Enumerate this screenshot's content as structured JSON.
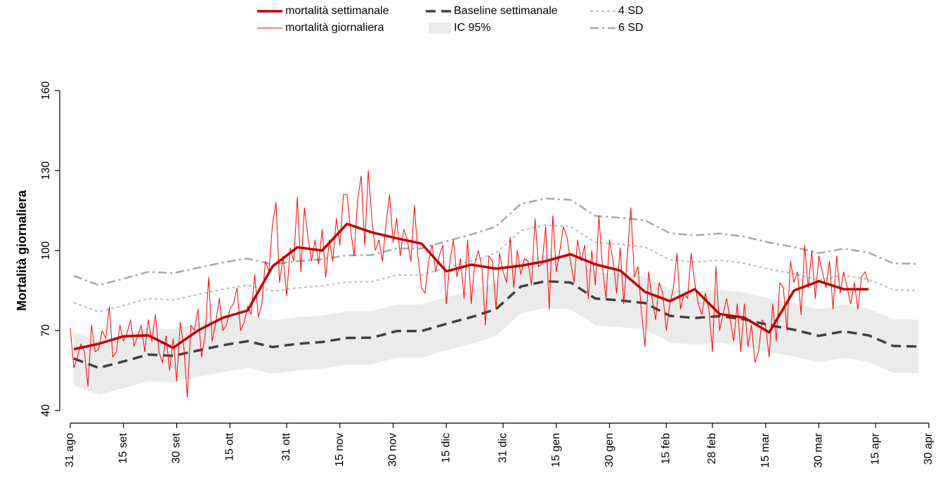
{
  "chart_data": {
    "type": "line",
    "ylabel": "Mortalità giornaliera",
    "xlim": [
      0,
      242
    ],
    "ylim": [
      40,
      160
    ],
    "yticks": [
      40,
      70,
      100,
      130,
      160
    ],
    "xticks": [
      {
        "value": 0,
        "label": "31 ago"
      },
      {
        "value": 15,
        "label": "15 set"
      },
      {
        "value": 30,
        "label": "30 set"
      },
      {
        "value": 45,
        "label": "15 ott"
      },
      {
        "value": 61,
        "label": "31 ott"
      },
      {
        "value": 76,
        "label": "15 nov"
      },
      {
        "value": 91,
        "label": "30 nov"
      },
      {
        "value": 106,
        "label": "15 dic"
      },
      {
        "value": 122,
        "label": "31 dic"
      },
      {
        "value": 137,
        "label": "15 gen"
      },
      {
        "value": 152,
        "label": "30 gen"
      },
      {
        "value": 168,
        "label": "15 feb"
      },
      {
        "value": 181,
        "label": "28 feb"
      },
      {
        "value": 196,
        "label": "15 mar"
      },
      {
        "value": 211,
        "label": "30 mar"
      },
      {
        "value": 227,
        "label": "15 apr"
      },
      {
        "value": 242,
        "label": "30 apr"
      }
    ],
    "series": [
      {
        "name": "mortalità settimanale",
        "color": "#c00000",
        "style": "thick",
        "x": [
          1,
          8,
          15,
          22,
          29,
          36,
          43,
          50,
          57,
          64,
          71,
          78,
          85,
          92,
          99,
          106,
          113,
          120,
          127,
          134,
          141,
          148,
          155,
          162,
          169,
          176,
          183,
          190,
          197,
          204,
          211,
          218,
          225
        ],
        "values": [
          63,
          65,
          67.8,
          68.2,
          63.5,
          70,
          74.8,
          77.5,
          94,
          101.2,
          100,
          110,
          106.8,
          104.6,
          102.6,
          92.2,
          94.7,
          93.2,
          94.3,
          96,
          98.6,
          94.8,
          92.5,
          84.5,
          81,
          85.5,
          76.2,
          74.8,
          69.3,
          85,
          88.5,
          85.5,
          85.5
        ]
      },
      {
        "name": "mortalità giornaliera",
        "color": "#ff0000",
        "style": "thin",
        "x": [
          0,
          1,
          2,
          3,
          4,
          5,
          6,
          7,
          8,
          9,
          10,
          11,
          12,
          13,
          14,
          15,
          16,
          17,
          18,
          19,
          20,
          21,
          22,
          23,
          24,
          25,
          26,
          27,
          28,
          29,
          30,
          31,
          32,
          33,
          34,
          35,
          36,
          37,
          38,
          39,
          40,
          41,
          42,
          43,
          44,
          45,
          46,
          47,
          48,
          49,
          50,
          51,
          52,
          53,
          54,
          55,
          56,
          57,
          58,
          59,
          60,
          61,
          62,
          63,
          64,
          65,
          66,
          67,
          68,
          69,
          70,
          71,
          72,
          73,
          74,
          75,
          76,
          77,
          78,
          79,
          80,
          81,
          82,
          83,
          84,
          85,
          86,
          87,
          88,
          89,
          90,
          91,
          92,
          93,
          94,
          95,
          96,
          97,
          98,
          99,
          100,
          101,
          102,
          103,
          104,
          105,
          106,
          107,
          108,
          109,
          110,
          111,
          112,
          113,
          114,
          115,
          116,
          117,
          118,
          119,
          120,
          121,
          122,
          123,
          124,
          125,
          126,
          127,
          128,
          129,
          130,
          131,
          132,
          133,
          134,
          135,
          136,
          137,
          138,
          139,
          140,
          141,
          142,
          143,
          144,
          145,
          146,
          147,
          148,
          149,
          150,
          151,
          152,
          153,
          154,
          155,
          156,
          157,
          158,
          159,
          160,
          161,
          162,
          163,
          164,
          165,
          166,
          167,
          168,
          169,
          170,
          171,
          172,
          173,
          174,
          175,
          176,
          177,
          178,
          179,
          180,
          181,
          182,
          183,
          184,
          185,
          186,
          187,
          188,
          189,
          190,
          191,
          192,
          193,
          194,
          195,
          196,
          197,
          198,
          199,
          200,
          201,
          202,
          203,
          204,
          205,
          206,
          207,
          208,
          209,
          210,
          211,
          212,
          213,
          214,
          215,
          216,
          217,
          218,
          219,
          220,
          221,
          222,
          223,
          224,
          225
        ],
        "values": [
          71,
          56,
          60,
          65,
          62,
          49,
          72,
          62,
          63,
          70,
          67,
          79,
          60,
          62,
          72,
          66,
          69,
          74,
          64,
          68,
          72,
          62,
          74,
          66,
          76,
          62,
          58,
          68,
          55,
          67,
          51,
          73,
          64,
          45,
          72,
          70,
          78,
          60,
          68,
          90,
          66,
          73,
          82,
          70,
          72,
          78,
          80,
          86,
          70,
          73,
          79,
          76,
          91,
          75,
          80,
          96,
          92,
          110,
          118,
          88,
          98,
          83,
          101,
          96,
          120,
          92,
          116,
          105,
          96,
          104,
          95,
          108,
          90,
          104,
          96,
          112,
          102,
          121,
          121,
          108,
          98,
          119,
          128,
          102,
          130,
          112,
          100,
          104,
          96,
          110,
          121,
          103,
          112,
          98,
          108,
          104,
          96,
          117,
          98,
          86,
          84,
          96,
          102,
          92,
          98,
          102,
          80,
          96,
          104,
          90,
          97,
          82,
          104,
          80,
          95,
          100,
          94,
          72,
          98,
          96,
          78,
          99,
          92,
          88,
          105,
          86,
          100,
          91,
          97,
          96,
          87,
          112,
          94,
          95,
          109,
          78,
          113,
          92,
          100,
          109,
          105,
          96,
          88,
          104,
          96,
          102,
          82,
          100,
          87,
          113,
          94,
          82,
          104,
          96,
          84,
          101,
          80,
          98,
          116,
          90,
          94,
          77,
          64,
          92,
          82,
          74,
          88,
          84,
          70,
          80,
          86,
          99,
          78,
          84,
          82,
          99,
          88,
          80,
          76,
          84,
          78,
          62,
          94,
          70,
          76,
          82,
          74,
          66,
          80,
          62,
          80,
          64,
          72,
          58,
          62,
          74,
          72,
          60,
          80,
          66,
          88,
          86,
          70,
          96,
          88,
          92,
          76,
          102,
          86,
          100,
          82,
          98,
          92,
          86,
          96,
          78,
          98,
          84,
          92,
          86,
          80,
          88,
          78,
          90,
          92,
          88
        ]
      },
      {
        "name": "Baseline settimanale",
        "color": "#404040",
        "style": "dashed",
        "x": [
          1,
          8,
          15,
          22,
          29,
          36,
          43,
          50,
          57,
          64,
          71,
          78,
          85,
          92,
          99,
          106,
          113,
          120,
          127,
          134,
          141,
          148,
          155,
          162,
          169,
          176,
          183,
          190,
          197,
          204,
          211,
          218,
          225,
          232,
          239
        ],
        "values": [
          59.5,
          56,
          58.4,
          61,
          60.5,
          62.5,
          64.5,
          66,
          63.8,
          65,
          65.7,
          67.2,
          67.3,
          69.8,
          69.8,
          72.5,
          75,
          78,
          86.5,
          88.5,
          88,
          82,
          81.3,
          80.3,
          75.5,
          74.7,
          75.4,
          74.2,
          72,
          70.3,
          68,
          69.7,
          68.2,
          64.2,
          64
        ]
      },
      {
        "name": "IC 95%",
        "color": "#ebebeb",
        "style": "band",
        "x": [
          1,
          8,
          15,
          22,
          29,
          36,
          43,
          50,
          57,
          64,
          71,
          78,
          85,
          92,
          99,
          106,
          113,
          120,
          127,
          134,
          141,
          148,
          155,
          162,
          169,
          176,
          183,
          190,
          197,
          204,
          211,
          218,
          225,
          232,
          239
        ],
        "lower": [
          49.5,
          46,
          48.4,
          51,
          50.5,
          52.5,
          54.5,
          56,
          53.8,
          55,
          55.7,
          57.2,
          57.3,
          59.8,
          59.8,
          62.5,
          65,
          68,
          76.5,
          78.5,
          78,
          72,
          71.3,
          70.3,
          65.5,
          64.7,
          65.4,
          64.2,
          62,
          60.3,
          58,
          59.7,
          58.2,
          54.2,
          54
        ],
        "upper": [
          69.5,
          66,
          68.4,
          71,
          70.5,
          72.5,
          74.5,
          76,
          73.8,
          75,
          75.7,
          77.2,
          77.3,
          79.8,
          79.8,
          82.5,
          85,
          88,
          96.5,
          98.5,
          98,
          92,
          91.3,
          90.3,
          85.5,
          84.7,
          85.4,
          84.2,
          82,
          80.3,
          78,
          79.7,
          78.2,
          74.2,
          74
        ]
      },
      {
        "name": "4 SD",
        "color": "#bdbdbd",
        "style": "dotted",
        "x": [
          1,
          8,
          15,
          22,
          29,
          36,
          43,
          50,
          57,
          64,
          71,
          78,
          85,
          92,
          99,
          106,
          113,
          120,
          127,
          134,
          141,
          148,
          155,
          162,
          169,
          176,
          183,
          190,
          197,
          204,
          211,
          218,
          225,
          232,
          239
        ],
        "values": [
          80.5,
          77,
          79.4,
          82,
          81.5,
          83.5,
          85.5,
          87,
          84.8,
          86,
          86.7,
          88.2,
          88.3,
          90.8,
          90.8,
          93.5,
          96,
          99,
          107.5,
          109.5,
          109,
          103,
          102.3,
          101.3,
          96.5,
          95.7,
          96.4,
          95.2,
          93,
          91.3,
          89,
          90.7,
          89.2,
          85.2,
          85
        ]
      },
      {
        "name": "6 SD",
        "color": "#a6a6a6",
        "style": "dashdot",
        "x": [
          1,
          8,
          15,
          22,
          29,
          36,
          43,
          50,
          57,
          64,
          71,
          78,
          85,
          92,
          99,
          106,
          113,
          120,
          127,
          134,
          141,
          148,
          155,
          162,
          169,
          176,
          183,
          190,
          197,
          204,
          211,
          218,
          225,
          232,
          239
        ],
        "values": [
          90.5,
          87,
          89.4,
          92,
          91.5,
          93.5,
          95.5,
          97,
          94.8,
          96,
          96.7,
          98.2,
          98.3,
          100.8,
          100.8,
          103.5,
          106,
          109,
          117.5,
          119.5,
          119,
          113,
          112.3,
          111.3,
          106.5,
          105.7,
          106.4,
          105.2,
          103,
          101.3,
          99,
          100.7,
          99.2,
          95.2,
          95
        ]
      }
    ]
  }
}
